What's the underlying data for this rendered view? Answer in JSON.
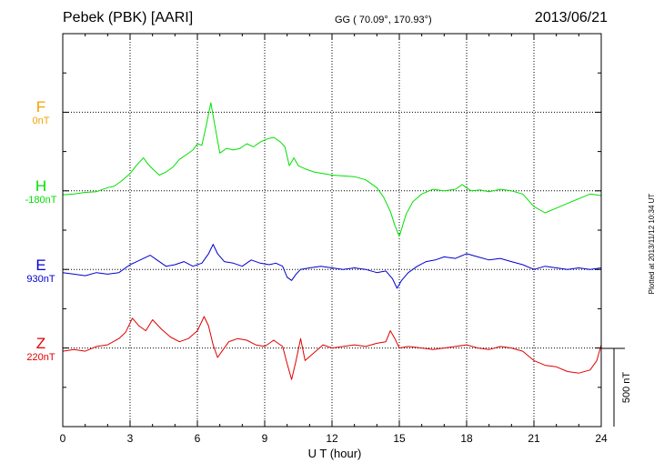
{
  "header": {
    "station": "Pebek (PBK)  [AARI]",
    "coords": "GG ( 70.09°, 170.93°)",
    "date": "2013/06/21"
  },
  "footer": {
    "plotted": "Plotted at 2013/11/12 10:34 UT"
  },
  "chart_data": {
    "type": "line",
    "title": "Pebek (PBK)  [AARI]",
    "xlabel": "U T (hour)",
    "xlim": [
      0,
      24
    ],
    "xticks": [
      0,
      3,
      6,
      9,
      12,
      15,
      18,
      21,
      24
    ],
    "grid": true,
    "scale_bar": {
      "label": "500 nT",
      "value": 500
    },
    "series": [
      {
        "name": "F",
        "baseline": "0nT",
        "color": "#f5a000",
        "x": [],
        "y": []
      },
      {
        "name": "H",
        "baseline": "-180nT",
        "color": "#00e000",
        "x": [
          0,
          0.5,
          1,
          1.5,
          2,
          2.3,
          2.6,
          3.0,
          3.3,
          3.6,
          3.8,
          4.0,
          4.3,
          4.6,
          4.9,
          5.2,
          5.5,
          5.8,
          6.0,
          6.2,
          6.4,
          6.6,
          6.8,
          7.0,
          7.3,
          7.6,
          7.9,
          8.2,
          8.5,
          8.8,
          9.1,
          9.4,
          9.7,
          9.9,
          10.1,
          10.3,
          10.5,
          10.8,
          11.2,
          11.6,
          12.0,
          12.5,
          13.0,
          13.5,
          14.0,
          14.3,
          14.6,
          14.8,
          15.0,
          15.3,
          15.6,
          16.0,
          16.5,
          17.0,
          17.5,
          17.8,
          18.2,
          18.6,
          19.0,
          19.5,
          20.0,
          20.5,
          21.0,
          21.5,
          22.0,
          22.5,
          23.0,
          23.5,
          24.0
        ],
        "y": [
          -25,
          -20,
          -10,
          -5,
          20,
          30,
          60,
          110,
          165,
          210,
          170,
          140,
          100,
          120,
          150,
          200,
          230,
          260,
          300,
          290,
          420,
          560,
          400,
          240,
          270,
          260,
          270,
          300,
          280,
          310,
          330,
          340,
          310,
          280,
          160,
          210,
          160,
          140,
          120,
          110,
          100,
          95,
          90,
          70,
          20,
          -40,
          -130,
          -220,
          -290,
          -150,
          -70,
          -20,
          10,
          0,
          10,
          40,
          0,
          5,
          -5,
          10,
          0,
          -20,
          -100,
          -140,
          -110,
          -80,
          -50,
          -20,
          -30
        ]
      },
      {
        "name": "E",
        "baseline": "930nT",
        "color": "#0000d0",
        "x": [
          0,
          0.5,
          1,
          1.5,
          2,
          2.5,
          3.0,
          3.3,
          3.6,
          3.9,
          4.2,
          4.6,
          5.0,
          5.4,
          5.8,
          6.2,
          6.5,
          6.7,
          6.9,
          7.2,
          7.6,
          8.0,
          8.4,
          8.8,
          9.2,
          9.5,
          9.8,
          10.0,
          10.2,
          10.4,
          10.6,
          11.0,
          11.5,
          12.0,
          12.5,
          13.0,
          13.5,
          14.0,
          14.4,
          14.7,
          14.9,
          15.1,
          15.4,
          15.8,
          16.2,
          16.6,
          17.0,
          17.5,
          18.0,
          18.5,
          19.0,
          19.5,
          20.0,
          20.5,
          21.0,
          21.5,
          22.0,
          22.5,
          23.0,
          23.5,
          24.0
        ],
        "y": [
          -20,
          -30,
          -40,
          -20,
          -30,
          -20,
          30,
          50,
          70,
          90,
          60,
          20,
          30,
          50,
          20,
          40,
          100,
          160,
          100,
          50,
          40,
          20,
          60,
          40,
          30,
          40,
          20,
          -50,
          -70,
          -30,
          0,
          10,
          20,
          10,
          0,
          10,
          0,
          -20,
          -10,
          -60,
          -120,
          -70,
          -20,
          20,
          50,
          60,
          80,
          70,
          100,
          80,
          60,
          70,
          50,
          30,
          0,
          20,
          10,
          0,
          10,
          0,
          10
        ]
      },
      {
        "name": "Z",
        "baseline": "220nT",
        "color": "#e00000",
        "x": [
          0,
          0.5,
          1,
          1.5,
          2,
          2.5,
          2.8,
          3.1,
          3.4,
          3.7,
          4.0,
          4.4,
          4.8,
          5.2,
          5.6,
          6.0,
          6.3,
          6.5,
          6.7,
          6.9,
          7.1,
          7.4,
          7.8,
          8.2,
          8.6,
          9.0,
          9.4,
          9.8,
          10.0,
          10.2,
          10.4,
          10.6,
          10.8,
          11.2,
          11.6,
          12.0,
          12.5,
          13.0,
          13.5,
          14.0,
          14.4,
          14.6,
          14.8,
          15.0,
          15.4,
          16.0,
          16.5,
          17.0,
          17.5,
          18.0,
          18.5,
          19.0,
          19.5,
          20.0,
          20.5,
          21.0,
          21.5,
          22.0,
          22.5,
          23.0,
          23.5,
          23.8,
          24.0
        ],
        "y": [
          -20,
          -10,
          -20,
          10,
          20,
          60,
          100,
          190,
          140,
          110,
          180,
          120,
          70,
          40,
          60,
          110,
          200,
          140,
          20,
          -60,
          -20,
          40,
          60,
          50,
          20,
          10,
          50,
          10,
          -100,
          -200,
          -80,
          60,
          -80,
          -30,
          20,
          0,
          10,
          20,
          10,
          30,
          40,
          110,
          60,
          0,
          10,
          0,
          -10,
          0,
          10,
          20,
          0,
          -10,
          10,
          0,
          -20,
          -80,
          -110,
          -120,
          -150,
          -160,
          -140,
          -80,
          20
        ]
      }
    ]
  }
}
